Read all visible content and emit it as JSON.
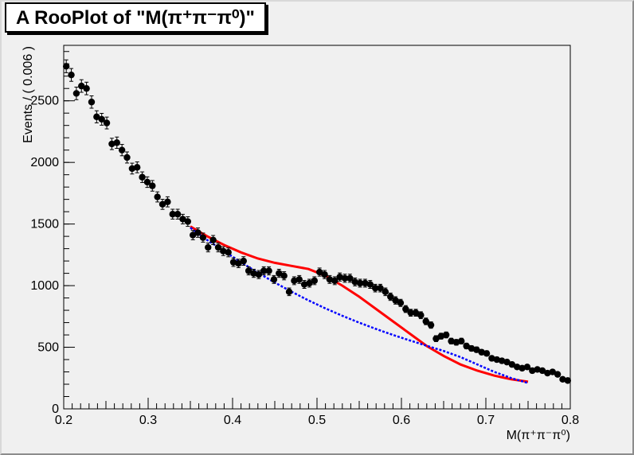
{
  "chart_data": {
    "type": "scatter",
    "title": "A RooPlot of \"M(π⁺π⁻π⁰)\"",
    "xlabel": "M(π⁺π⁻π⁰)",
    "ylabel": "Events / ( 0.006 )",
    "xlim": [
      0.2,
      0.8
    ],
    "ylim": [
      0,
      2950
    ],
    "xticks": [
      0.2,
      0.3,
      0.4,
      0.5,
      0.6,
      0.7,
      0.8
    ],
    "yticks": [
      0,
      500,
      1000,
      1500,
      2000,
      2500
    ],
    "grid": false,
    "series": [
      {
        "kind": "points-with-errors",
        "color": "#000000",
        "x": [
          0.203,
          0.209,
          0.215,
          0.221,
          0.227,
          0.233,
          0.239,
          0.245,
          0.251,
          0.257,
          0.263,
          0.269,
          0.275,
          0.281,
          0.287,
          0.293,
          0.299,
          0.305,
          0.311,
          0.317,
          0.323,
          0.329,
          0.335,
          0.341,
          0.347,
          0.353,
          0.359,
          0.365,
          0.371,
          0.377,
          0.383,
          0.389,
          0.395,
          0.401,
          0.407,
          0.413,
          0.419,
          0.425,
          0.431,
          0.437,
          0.443,
          0.449,
          0.455,
          0.461,
          0.467,
          0.473,
          0.479,
          0.485,
          0.491,
          0.497,
          0.503,
          0.509,
          0.515,
          0.521,
          0.527,
          0.533,
          0.539,
          0.545,
          0.551,
          0.557,
          0.563,
          0.569,
          0.575,
          0.581,
          0.587,
          0.593,
          0.599,
          0.605,
          0.611,
          0.617,
          0.623,
          0.629,
          0.635,
          0.641,
          0.647,
          0.653,
          0.659,
          0.665,
          0.671,
          0.677,
          0.683,
          0.689,
          0.695,
          0.701,
          0.707,
          0.713,
          0.719,
          0.725,
          0.731,
          0.737,
          0.743,
          0.749,
          0.755,
          0.761,
          0.767,
          0.773,
          0.779,
          0.785,
          0.791,
          0.797
        ],
        "y": [
          2780,
          2710,
          2560,
          2620,
          2600,
          2490,
          2370,
          2350,
          2320,
          2150,
          2160,
          2100,
          2040,
          1950,
          1960,
          1880,
          1840,
          1810,
          1720,
          1660,
          1680,
          1580,
          1580,
          1540,
          1520,
          1410,
          1430,
          1390,
          1310,
          1370,
          1310,
          1280,
          1270,
          1190,
          1180,
          1200,
          1120,
          1100,
          1090,
          1120,
          1120,
          1050,
          1100,
          1080,
          950,
          1040,
          1050,
          1010,
          1020,
          1040,
          1110,
          1090,
          1050,
          1040,
          1070,
          1060,
          1060,
          1030,
          1020,
          1020,
          1010,
          980,
          980,
          950,
          910,
          880,
          860,
          810,
          780,
          780,
          760,
          710,
          680,
          570,
          590,
          600,
          550,
          540,
          550,
          510,
          490,
          480,
          460,
          450,
          410,
          400,
          390,
          380,
          360,
          340,
          330,
          340,
          310,
          320,
          310,
          290,
          300,
          280,
          240,
          230
        ],
        "yerr": [
          52,
          52,
          51,
          51,
          51,
          50,
          49,
          48,
          48,
          46,
          46,
          46,
          45,
          44,
          44,
          43,
          43,
          43,
          41,
          41,
          41,
          40,
          40,
          39,
          39,
          38,
          38,
          37,
          36,
          37,
          36,
          36,
          36,
          34,
          34,
          35,
          33,
          33,
          33,
          33,
          33,
          32,
          33,
          33,
          31,
          32,
          32,
          32,
          32,
          32,
          33,
          33,
          32,
          32,
          33,
          33,
          33,
          32,
          32,
          32,
          32,
          31,
          31,
          31,
          30,
          30,
          29,
          28,
          28,
          28,
          28,
          27,
          26,
          24,
          24,
          24,
          23,
          23,
          23,
          23,
          22,
          22,
          21,
          21,
          20,
          20,
          20,
          19,
          19,
          18,
          18,
          18,
          18,
          18,
          18,
          17,
          17,
          17,
          15,
          15
        ]
      },
      {
        "kind": "line",
        "color": "#ff0000",
        "style": "solid",
        "x": [
          0.35,
          0.37,
          0.39,
          0.41,
          0.43,
          0.45,
          0.47,
          0.49,
          0.51,
          0.53,
          0.55,
          0.57,
          0.59,
          0.61,
          0.63,
          0.65,
          0.67,
          0.69,
          0.71,
          0.73,
          0.75
        ],
        "y": [
          1480,
          1400,
          1330,
          1270,
          1220,
          1185,
          1160,
          1135,
          1080,
          1000,
          910,
          810,
          710,
          610,
          510,
          430,
          360,
          310,
          270,
          240,
          220
        ]
      },
      {
        "kind": "line",
        "color": "#0000ff",
        "style": "dashed",
        "x": [
          0.35,
          0.37,
          0.39,
          0.41,
          0.43,
          0.45,
          0.47,
          0.49,
          0.51,
          0.53,
          0.55,
          0.57,
          0.59,
          0.61,
          0.63,
          0.65,
          0.67,
          0.69,
          0.71,
          0.73,
          0.75
        ],
        "y": [
          1470,
          1370,
          1280,
          1190,
          1105,
          1025,
          950,
          880,
          815,
          755,
          700,
          648,
          600,
          555,
          512,
          470,
          420,
          360,
          300,
          250,
          210
        ]
      }
    ]
  }
}
